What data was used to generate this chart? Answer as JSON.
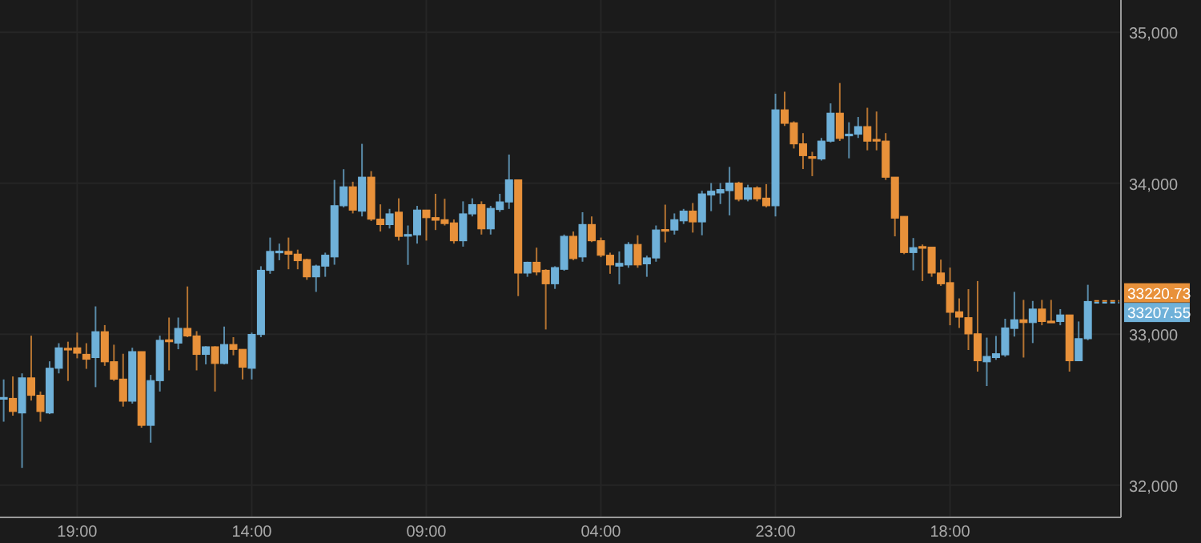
{
  "chart_data": {
    "type": "candlestick",
    "colors": [
      "#6fb1d9",
      "#e8913a",
      "#6fb1d9",
      "#e8913a",
      "#e8913a",
      "#6fb1d9",
      "#6fb1d9",
      "#e8913a",
      "#e8913a",
      "#e8913a",
      "#6fb1d9",
      "#e8913a",
      "#e8913a",
      "#e8913a",
      "#6fb1d9",
      "#e8913a",
      "#6fb1d9",
      "#6fb1d9",
      "#e8913a",
      "#6fb1d9",
      "#e8913a",
      "#e8913a",
      "#6fb1d9",
      "#e8913a",
      "#6fb1d9",
      "#e8913a",
      "#e8913a",
      "#6fb1d9",
      "#6fb1d9",
      "#6fb1d9",
      "#6fb1d9",
      "#e8913a",
      "#e8913a",
      "#e8913a",
      "#6fb1d9",
      "#6fb1d9",
      "#6fb1d9",
      "#6fb1d9",
      "#e8913a",
      "#6fb1d9",
      "#e8913a",
      "#e8913a",
      "#6fb1d9",
      "#e8913a",
      "#6fb1d9",
      "#6fb1d9",
      "#e8913a",
      "#e8913a",
      "#e8913a",
      "#e8913a",
      "#6fb1d9",
      "#6fb1d9",
      "#e8913a",
      "#6fb1d9",
      "#6fb1d9",
      "#6fb1d9",
      "#e8913a",
      "#6fb1d9",
      "#e8913a",
      "#e8913a",
      "#6fb1d9",
      "#6fb1d9",
      "#e8913a",
      "#6fb1d9",
      "#e8913a",
      "#e8913a",
      "#e8913a",
      "#6fb1d9",
      "#6fb1d9",
      "#e8913a",
      "#6fb1d9",
      "#6fb1d9",
      "#e8913a",
      "#6fb1d9",
      "#6fb1d9",
      "#e8913a",
      "#6fb1d9",
      "#6fb1d9",
      "#6fb1d9",
      "#6fb1d9",
      "#e8913a",
      "#6fb1d9",
      "#e8913a",
      "#e8913a",
      "#6fb1d9",
      "#e8913a",
      "#e8913a",
      "#e8913a",
      "#e8913a",
      "#6fb1d9",
      "#6fb1d9",
      "#e8913a",
      "#6fb1d9",
      "#6fb1d9",
      "#e8913a",
      "#e8913a",
      "#e8913a",
      "#e8913a",
      "#e8913a",
      "#6fb1d9",
      "#e8913a",
      "#e8913a",
      "#e8913a",
      "#e8913a",
      "#e8913a",
      "#e8913a",
      "#e8913a",
      "#6fb1d9",
      "#6fb1d9",
      "#6fb1d9",
      "#6fb1d9",
      "#e8913a",
      "#6fb1d9",
      "#e8913a",
      "#e8913a",
      "#6fb1d9",
      "#e8913a",
      "#6fb1d9",
      "#6fb1d9"
    ],
    "categories": [
      null,
      null,
      null,
      null,
      null,
      null,
      null,
      null,
      "19:00",
      null,
      null,
      null,
      null,
      null,
      null,
      null,
      null,
      null,
      null,
      null,
      null,
      null,
      null,
      null,
      null,
      null,
      null,
      "14:00",
      null,
      null,
      null,
      null,
      null,
      null,
      null,
      null,
      null,
      null,
      null,
      null,
      null,
      null,
      null,
      null,
      null,
      null,
      "09:00",
      null,
      null,
      null,
      null,
      null,
      null,
      null,
      null,
      null,
      null,
      null,
      null,
      null,
      null,
      null,
      null,
      null,
      null,
      "04:00",
      null,
      null,
      null,
      null,
      null,
      null,
      null,
      null,
      null,
      null,
      null,
      null,
      null,
      null,
      null,
      null,
      null,
      null,
      "23:00",
      null,
      null,
      null,
      null,
      null,
      null,
      null,
      null,
      null,
      null,
      null,
      null,
      null,
      null,
      null,
      null,
      null,
      null,
      "18:00",
      null,
      null,
      null,
      null,
      null,
      null,
      null,
      null,
      null,
      null,
      null,
      null,
      null,
      null,
      null
    ],
    "ohlc": [
      [
        32570,
        32700,
        32420,
        32580
      ],
      [
        32574,
        32720,
        32460,
        32488
      ],
      [
        32478,
        32740,
        32114,
        32710
      ],
      [
        32710,
        32990,
        32560,
        32595
      ],
      [
        32595,
        32620,
        32420,
        32488
      ],
      [
        32478,
        32820,
        32470,
        32774
      ],
      [
        32774,
        32940,
        32740,
        32909
      ],
      [
        32906,
        32950,
        32690,
        32899
      ],
      [
        32909,
        33010,
        32840,
        32874
      ],
      [
        32866,
        32940,
        32770,
        32834
      ],
      [
        32845,
        33184,
        32649,
        33016
      ],
      [
        33016,
        33060,
        32790,
        32817
      ],
      [
        32817,
        32930,
        32690,
        32702
      ],
      [
        32702,
        32870,
        32520,
        32556
      ],
      [
        32556,
        32910,
        32540,
        32884
      ],
      [
        32884,
        32884,
        32380,
        32396
      ],
      [
        32396,
        32730,
        32281,
        32692
      ],
      [
        32692,
        32990,
        32620,
        32959
      ],
      [
        32962,
        33110,
        32760,
        32950
      ],
      [
        32941,
        33110,
        32900,
        33038
      ],
      [
        33038,
        33316,
        32980,
        32988
      ],
      [
        32988,
        33020,
        32760,
        32866
      ],
      [
        32866,
        32920,
        32800,
        32916
      ],
      [
        32916,
        32920,
        32620,
        32806
      ],
      [
        32806,
        33050,
        32800,
        32931
      ],
      [
        32931,
        32980,
        32860,
        32899
      ],
      [
        32899,
        32899,
        32700,
        32781
      ],
      [
        32774,
        33010,
        32700,
        32998
      ],
      [
        32998,
        33450,
        32980,
        33423
      ],
      [
        33423,
        33640,
        33400,
        33548
      ],
      [
        33540,
        33600,
        33490,
        33550
      ],
      [
        33548,
        33640,
        33430,
        33530
      ],
      [
        33530,
        33560,
        33430,
        33487
      ],
      [
        33494,
        33500,
        33360,
        33380
      ],
      [
        33380,
        33460,
        33280,
        33451
      ],
      [
        33451,
        33540,
        33380,
        33523
      ],
      [
        33512,
        34022,
        33460,
        33851
      ],
      [
        33851,
        34093,
        33840,
        33976
      ],
      [
        33976,
        34010,
        33800,
        33822
      ],
      [
        33815,
        34261,
        33780,
        34040
      ],
      [
        34040,
        34080,
        33750,
        33762
      ],
      [
        33762,
        33860,
        33680,
        33726
      ],
      [
        33726,
        33830,
        33700,
        33797
      ],
      [
        33808,
        33900,
        33620,
        33648
      ],
      [
        33655,
        33720,
        33459,
        33660
      ],
      [
        33658,
        33850,
        33600,
        33822
      ],
      [
        33822,
        33822,
        33620,
        33772
      ],
      [
        33772,
        33930,
        33690,
        33755
      ],
      [
        33758,
        33897,
        33720,
        33733
      ],
      [
        33737,
        33760,
        33600,
        33619
      ],
      [
        33619,
        33880,
        33580,
        33797
      ],
      [
        33797,
        33900,
        33780,
        33858
      ],
      [
        33858,
        33880,
        33660,
        33698
      ],
      [
        33698,
        33850,
        33660,
        33833
      ],
      [
        33826,
        33930,
        33810,
        33876
      ],
      [
        33876,
        34190,
        33830,
        34022
      ],
      [
        34022,
        34022,
        33252,
        33405
      ],
      [
        33405,
        33480,
        33380,
        33476
      ],
      [
        33476,
        33573,
        33390,
        33412
      ],
      [
        33423,
        33430,
        33031,
        33334
      ],
      [
        33334,
        33450,
        33300,
        33441
      ],
      [
        33430,
        33660,
        33420,
        33648
      ],
      [
        33648,
        33680,
        33490,
        33501
      ],
      [
        33512,
        33808,
        33480,
        33726
      ],
      [
        33726,
        33780,
        33610,
        33619
      ],
      [
        33619,
        33640,
        33510,
        33523
      ],
      [
        33523,
        33540,
        33400,
        33459
      ],
      [
        33451,
        33548,
        33330,
        33469
      ],
      [
        33459,
        33610,
        33440,
        33594
      ],
      [
        33594,
        33655,
        33440,
        33459
      ],
      [
        33466,
        33520,
        33380,
        33505
      ],
      [
        33505,
        33720,
        33480,
        33690
      ],
      [
        33693,
        33858,
        33608,
        33686
      ],
      [
        33690,
        33800,
        33660,
        33758
      ],
      [
        33751,
        33830,
        33730,
        33815
      ],
      [
        33815,
        33869,
        33673,
        33744
      ],
      [
        33744,
        33950,
        33655,
        33929
      ],
      [
        33922,
        34001,
        33815,
        33947
      ],
      [
        33936,
        34001,
        33862,
        33958
      ],
      [
        33951,
        34108,
        33787,
        34001
      ],
      [
        34001,
        34010,
        33880,
        33894
      ],
      [
        33894,
        33990,
        33880,
        33969
      ],
      [
        33969,
        33980,
        33880,
        33897
      ],
      [
        33901,
        33994,
        33840,
        33851
      ],
      [
        33851,
        34593,
        33780,
        34486
      ],
      [
        34486,
        34607,
        34380,
        34397
      ],
      [
        34400,
        34410,
        34230,
        34261
      ],
      [
        34261,
        34332,
        34094,
        34183
      ],
      [
        34176,
        34208,
        34047,
        34168
      ],
      [
        34161,
        34300,
        34150,
        34279
      ],
      [
        34279,
        34529,
        34270,
        34464
      ],
      [
        34464,
        34664,
        34280,
        34297
      ],
      [
        34320,
        34404,
        34165,
        34325
      ],
      [
        34325,
        34439,
        34300,
        34375
      ],
      [
        34375,
        34500,
        34218,
        34279
      ],
      [
        34290,
        34475,
        34218,
        34286
      ],
      [
        34279,
        34332,
        34022,
        34040
      ],
      [
        34040,
        34040,
        33648,
        33769
      ],
      [
        33780,
        33780,
        33530,
        33541
      ],
      [
        33541,
        33637,
        33423,
        33573
      ],
      [
        33580,
        33594,
        33352,
        33576
      ],
      [
        33576,
        33576,
        33380,
        33405
      ],
      [
        33405,
        33494,
        33320,
        33334
      ],
      [
        33341,
        33441,
        33059,
        33145
      ],
      [
        33148,
        33237,
        33041,
        33113
      ],
      [
        33109,
        33298,
        32895,
        33002
      ],
      [
        33002,
        33352,
        32752,
        32824
      ],
      [
        32817,
        32977,
        32656,
        32852
      ],
      [
        32845,
        32988,
        32830,
        32870
      ],
      [
        32863,
        33102,
        32850,
        33041
      ],
      [
        33038,
        33280,
        32984,
        33095
      ],
      [
        33095,
        33227,
        32845,
        33077
      ],
      [
        33077,
        33220,
        32941,
        33166
      ],
      [
        33166,
        33227,
        33059,
        33084
      ],
      [
        33086,
        33227,
        33080,
        33084
      ],
      [
        33084,
        33166,
        33059,
        33127
      ],
      [
        33127,
        33127,
        32752,
        32824
      ],
      [
        32824,
        33084,
        32824,
        32970
      ],
      [
        32970,
        33327,
        32960,
        33216
      ]
    ],
    "ylim": [
      31786,
      35214
    ],
    "yticks": [
      {
        "value": 32000,
        "label": "32,000"
      },
      {
        "value": 33000,
        "label": "33,000"
      },
      {
        "value": 34000,
        "label": "34,000"
      },
      {
        "value": 35000,
        "label": "35,000"
      }
    ],
    "grid": true,
    "ref_lines": [
      {
        "axis": "y",
        "value": 33220.73,
        "label": "33220.73",
        "color": "#e8913a",
        "line_style": "dashed"
      },
      {
        "axis": "y",
        "value": 33207.55,
        "label": "33207.55",
        "color": "#6fb1d9",
        "line_style": "dashed"
      }
    ]
  }
}
